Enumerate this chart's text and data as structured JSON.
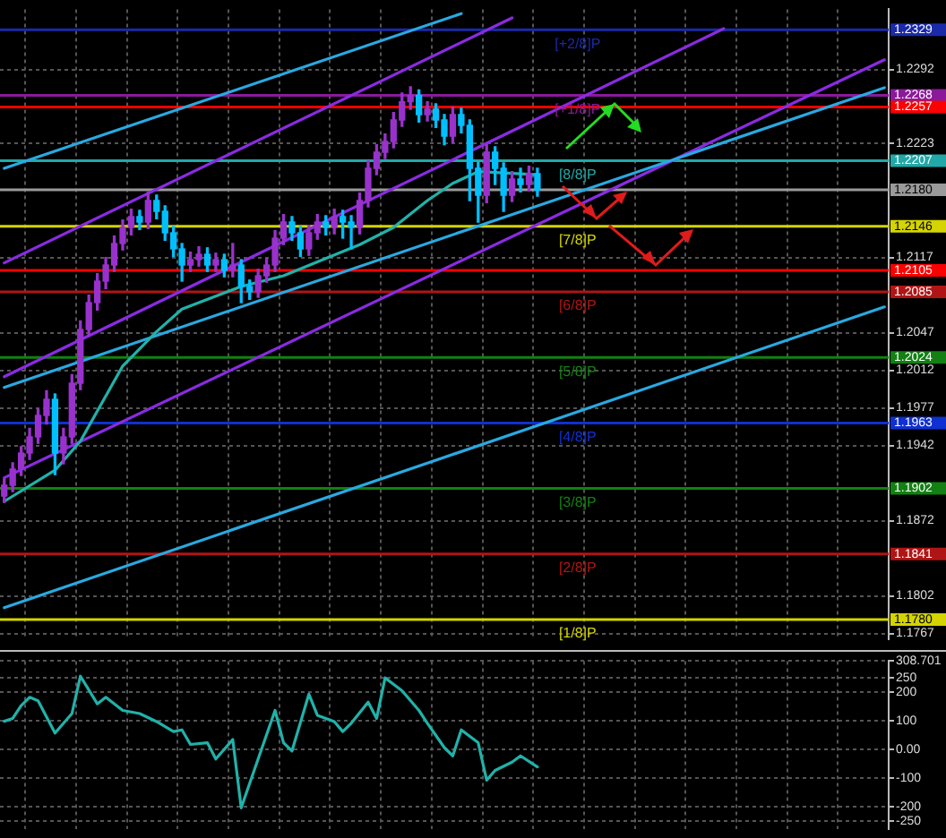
{
  "chart_data": [
    {
      "type": "candlestick",
      "categories": [
        null,
        null,
        null,
        null,
        null,
        null,
        null,
        null,
        null,
        null,
        null,
        null,
        null,
        null,
        null,
        null,
        null,
        null,
        null,
        null,
        null,
        null,
        null,
        null,
        null,
        null,
        null,
        null,
        null,
        null,
        null,
        null,
        null,
        null,
        null,
        null,
        null,
        null,
        null,
        null,
        null,
        null,
        null,
        null,
        null,
        null,
        null,
        null,
        null,
        null,
        null,
        null,
        null,
        null,
        null,
        null,
        null,
        null,
        null,
        null,
        null,
        null,
        null,
        null,
        null,
        null,
        null,
        null,
        null,
        null,
        null,
        null,
        null,
        null,
        null,
        null,
        null,
        null,
        null,
        null,
        null,
        null,
        null,
        null,
        null,
        null,
        null,
        null,
        null,
        null,
        null,
        null,
        null,
        null,
        null,
        null,
        null,
        null,
        null,
        null,
        null,
        null,
        null,
        null,
        null
      ],
      "ohlc": [
        [
          1.1895,
          1.1911,
          1.1889,
          1.1905
        ],
        [
          1.1905,
          1.1926,
          1.1899,
          1.192
        ],
        [
          1.192,
          1.1941,
          1.1914,
          1.1935
        ],
        [
          1.1935,
          1.1958,
          1.1929,
          1.195
        ],
        [
          1.195,
          1.1976,
          1.1944,
          1.197
        ],
        [
          1.197,
          1.1993,
          1.1962,
          1.1985
        ],
        [
          1.1985,
          1.199,
          1.1915,
          1.1935
        ],
        [
          1.1935,
          1.1958,
          1.1925,
          1.195
        ],
        [
          1.195,
          1.2008,
          1.1944,
          1.2
        ],
        [
          1.2,
          1.2058,
          1.1994,
          1.205
        ],
        [
          1.205,
          1.2082,
          1.2044,
          1.2075
        ],
        [
          1.2075,
          1.2102,
          1.2068,
          1.2095
        ],
        [
          1.2095,
          1.2117,
          1.2088,
          1.211
        ],
        [
          1.211,
          1.2137,
          1.2104,
          1.213
        ],
        [
          1.213,
          1.2152,
          1.2124,
          1.2145
        ],
        [
          1.2145,
          1.2162,
          1.2138,
          1.2155
        ],
        [
          1.2155,
          1.2161,
          1.2143,
          1.215
        ],
        [
          1.215,
          1.2178,
          1.2144,
          1.217
        ],
        [
          1.217,
          1.2175,
          1.2153,
          1.216
        ],
        [
          1.216,
          1.2165,
          1.2133,
          1.214
        ],
        [
          1.214,
          1.2146,
          1.2118,
          1.2125
        ],
        [
          1.2125,
          1.213,
          1.2095,
          1.211
        ],
        [
          1.211,
          1.2122,
          1.2104,
          1.2115
        ],
        [
          1.2115,
          1.2127,
          1.2109,
          1.212
        ],
        [
          1.212,
          1.2126,
          1.2104,
          1.211
        ],
        [
          1.211,
          1.2121,
          1.2104,
          1.2115
        ],
        [
          1.2115,
          1.212,
          1.2099,
          1.2105
        ],
        [
          1.2105,
          1.213,
          1.2099,
          1.211
        ],
        [
          1.211,
          1.2115,
          1.2075,
          1.209
        ],
        [
          1.209,
          1.2096,
          1.2078,
          1.2085
        ],
        [
          1.2085,
          1.2106,
          1.208,
          1.21
        ],
        [
          1.21,
          1.2116,
          1.2094,
          1.211
        ],
        [
          1.211,
          1.2142,
          1.2104,
          1.2135
        ],
        [
          1.2135,
          1.2157,
          1.2129,
          1.215
        ],
        [
          1.215,
          1.2155,
          1.2133,
          1.214
        ],
        [
          1.214,
          1.2146,
          1.2118,
          1.2125
        ],
        [
          1.2125,
          1.2147,
          1.2119,
          1.214
        ],
        [
          1.214,
          1.2157,
          1.2134,
          1.215
        ],
        [
          1.215,
          1.2156,
          1.2138,
          1.2145
        ],
        [
          1.2145,
          1.2162,
          1.2139,
          1.2155
        ],
        [
          1.2155,
          1.2161,
          1.2135,
          1.215
        ],
        [
          1.215,
          1.2156,
          1.2125,
          1.2145
        ],
        [
          1.2145,
          1.2177,
          1.2139,
          1.217
        ],
        [
          1.217,
          1.2207,
          1.2164,
          1.22
        ],
        [
          1.22,
          1.2222,
          1.2194,
          1.2215
        ],
        [
          1.2215,
          1.2232,
          1.2209,
          1.2225
        ],
        [
          1.2225,
          1.2252,
          1.2219,
          1.2245
        ],
        [
          1.2245,
          1.227,
          1.2239,
          1.2262
        ],
        [
          1.2262,
          1.2276,
          1.2255,
          1.2268
        ],
        [
          1.2268,
          1.2273,
          1.2243,
          1.225
        ],
        [
          1.225,
          1.2262,
          1.2244,
          1.2255
        ],
        [
          1.2255,
          1.226,
          1.2238,
          1.2245
        ],
        [
          1.2245,
          1.225,
          1.2222,
          1.223
        ],
        [
          1.223,
          1.2257,
          1.2224,
          1.225
        ],
        [
          1.225,
          1.2256,
          1.2233,
          1.224
        ],
        [
          1.224,
          1.2245,
          1.217,
          1.22
        ],
        [
          1.22,
          1.2206,
          1.215,
          1.2175
        ],
        [
          1.2175,
          1.2222,
          1.2168,
          1.2215
        ],
        [
          1.2215,
          1.222,
          1.2185,
          1.22
        ],
        [
          1.22,
          1.2205,
          1.216,
          1.2175
        ],
        [
          1.2175,
          1.2197,
          1.2169,
          1.219
        ],
        [
          1.219,
          1.22,
          1.2178,
          1.2185
        ],
        [
          1.2185,
          1.2202,
          1.2179,
          1.2195
        ],
        [
          1.2195,
          1.22,
          1.2174,
          1.218
        ],
        null,
        null,
        null,
        null,
        null,
        null,
        null,
        null,
        null,
        null,
        null,
        null,
        null,
        null,
        null,
        null,
        null,
        null,
        null,
        null,
        null,
        null,
        null,
        null,
        null,
        null,
        null,
        null,
        null,
        null,
        null,
        null,
        null,
        null,
        null,
        null,
        null,
        null,
        null,
        null,
        null
      ],
      "colors": [
        "#9932cc",
        "#9932cc",
        "#9932cc",
        "#9932cc",
        "#9932cc",
        "#9932cc",
        "#00bfff",
        "#9932cc",
        "#9932cc",
        "#9932cc",
        "#9932cc",
        "#9932cc",
        "#9932cc",
        "#9932cc",
        "#9932cc",
        "#9932cc",
        "#00bfff",
        "#9932cc",
        "#00bfff",
        "#00bfff",
        "#00bfff",
        "#00bfff",
        "#9932cc",
        "#9932cc",
        "#00bfff",
        "#9932cc",
        "#00bfff",
        "#9932cc",
        "#00bfff",
        "#00bfff",
        "#9932cc",
        "#9932cc",
        "#9932cc",
        "#9932cc",
        "#00bfff",
        "#00bfff",
        "#9932cc",
        "#9932cc",
        "#00bfff",
        "#9932cc",
        "#00bfff",
        "#00bfff",
        "#9932cc",
        "#9932cc",
        "#9932cc",
        "#9932cc",
        "#9932cc",
        "#9932cc",
        "#9932cc",
        "#00bfff",
        "#9932cc",
        "#00bfff",
        "#00bfff",
        "#9932cc",
        "#00bfff",
        "#00bfff",
        "#00bfff",
        "#9932cc",
        "#00bfff",
        "#00bfff",
        "#9932cc",
        "#00bfff",
        "#9932cc",
        "#00bfff",
        null,
        null,
        null,
        null,
        null,
        null,
        null,
        null,
        null,
        null,
        null,
        null,
        null,
        null,
        null,
        null,
        null,
        null,
        null,
        null,
        null,
        null,
        null,
        null,
        null,
        null,
        null,
        null,
        null,
        null,
        null,
        null,
        null,
        null,
        null,
        null,
        null,
        null,
        null,
        null,
        null
      ],
      "series": [
        {
          "type": "line",
          "color": "#20b2aa",
          "values": [
            1.189,
            null,
            null,
            null,
            null,
            null,
            1.1919,
            null,
            null,
            1.1946,
            null,
            null,
            null,
            null,
            1.2016,
            null,
            null,
            null,
            1.2048,
            null,
            null,
            1.2069,
            null,
            null,
            null,
            null,
            null,
            null,
            1.209,
            null,
            null,
            null,
            null,
            1.21,
            null,
            null,
            null,
            1.2113,
            null,
            null,
            null,
            null,
            1.2129,
            null,
            null,
            null,
            1.2145,
            null,
            null,
            null,
            1.217,
            null,
            null,
            1.2186,
            null,
            null,
            1.2197,
            null,
            null,
            null,
            null,
            null,
            null,
            1.2194,
            null,
            null,
            null,
            null,
            null,
            null,
            null,
            null,
            null,
            null,
            null,
            null,
            null,
            null,
            null,
            null,
            null,
            null,
            null,
            null,
            null,
            null,
            null,
            null,
            null,
            null,
            null,
            null,
            null,
            null,
            null,
            null,
            null,
            null,
            null,
            null,
            null,
            null,
            null,
            null,
            null
          ]
        },
        {
          "type": "line",
          "color": "#29a9e1",
          "values": [
            1.22,
            null,
            null,
            null,
            null,
            null,
            null,
            null,
            null,
            null,
            null,
            null,
            null,
            null,
            null,
            null,
            null,
            null,
            null,
            null,
            null,
            null,
            null,
            null,
            null,
            null,
            null,
            null,
            null,
            null,
            null,
            null,
            null,
            null,
            null,
            null,
            null,
            null,
            null,
            null,
            null,
            null,
            null,
            null,
            null,
            null,
            null,
            null,
            null,
            null,
            null,
            null,
            null,
            null,
            1.2344,
            null,
            null,
            null,
            null,
            null,
            null,
            null,
            null,
            null,
            null,
            null,
            null,
            null,
            null,
            null,
            null,
            null,
            null,
            null,
            null,
            null,
            null,
            null,
            null,
            null,
            null,
            null,
            null,
            null,
            null,
            null,
            null,
            null,
            null,
            null,
            null,
            null,
            null,
            null,
            null,
            null,
            null,
            null,
            null,
            null,
            null,
            null,
            null,
            null,
            null
          ]
        },
        {
          "type": "line",
          "color": "#29a9e1",
          "values": [
            1.1996,
            null,
            null,
            null,
            null,
            null,
            null,
            null,
            null,
            null,
            null,
            null,
            null,
            null,
            null,
            null,
            null,
            null,
            null,
            null,
            null,
            null,
            null,
            null,
            null,
            null,
            null,
            null,
            null,
            null,
            null,
            null,
            null,
            null,
            null,
            null,
            null,
            null,
            null,
            null,
            null,
            null,
            null,
            null,
            null,
            null,
            null,
            null,
            null,
            null,
            null,
            null,
            null,
            null,
            null,
            null,
            null,
            null,
            null,
            null,
            null,
            null,
            null,
            null,
            null,
            null,
            null,
            null,
            null,
            null,
            null,
            null,
            null,
            null,
            null,
            null,
            null,
            null,
            null,
            null,
            null,
            null,
            null,
            null,
            null,
            null,
            null,
            null,
            null,
            null,
            null,
            null,
            null,
            null,
            null,
            null,
            null,
            null,
            null,
            null,
            null,
            null,
            null,
            null,
            1.2275
          ]
        },
        {
          "type": "line",
          "color": "#29a9e1",
          "values": [
            1.1791,
            null,
            null,
            null,
            null,
            null,
            null,
            null,
            null,
            null,
            null,
            null,
            null,
            null,
            null,
            null,
            null,
            null,
            null,
            null,
            null,
            null,
            null,
            null,
            null,
            null,
            null,
            null,
            null,
            null,
            null,
            null,
            null,
            null,
            null,
            null,
            null,
            null,
            null,
            null,
            null,
            null,
            null,
            null,
            null,
            null,
            null,
            null,
            null,
            null,
            null,
            null,
            null,
            null,
            null,
            null,
            null,
            null,
            null,
            null,
            null,
            null,
            null,
            null,
            null,
            null,
            null,
            null,
            null,
            null,
            null,
            null,
            null,
            null,
            null,
            null,
            null,
            null,
            null,
            null,
            null,
            null,
            null,
            null,
            null,
            null,
            null,
            null,
            null,
            null,
            null,
            null,
            null,
            null,
            null,
            null,
            null,
            null,
            null,
            null,
            null,
            null,
            null,
            null,
            1.2071
          ]
        },
        {
          "type": "line",
          "color": "#8a2be2",
          "values": [
            1.2112,
            null,
            null,
            null,
            null,
            null,
            null,
            null,
            null,
            null,
            null,
            null,
            null,
            null,
            null,
            null,
            null,
            null,
            null,
            null,
            null,
            null,
            null,
            null,
            null,
            null,
            null,
            null,
            null,
            null,
            null,
            null,
            null,
            null,
            null,
            null,
            null,
            null,
            null,
            null,
            null,
            null,
            null,
            null,
            null,
            null,
            null,
            null,
            null,
            null,
            null,
            null,
            null,
            null,
            null,
            null,
            null,
            null,
            null,
            null,
            1.234,
            null,
            null,
            null,
            null,
            null,
            null,
            null,
            null,
            null,
            null,
            null,
            null,
            null,
            null,
            null,
            null,
            null,
            null,
            null,
            null,
            null,
            null,
            null,
            null,
            null,
            null,
            null,
            null,
            null,
            null,
            null,
            null,
            null,
            null,
            null,
            null,
            null,
            null,
            null,
            null,
            null,
            null,
            null,
            null
          ]
        },
        {
          "type": "line",
          "color": "#8a2be2",
          "values": [
            1.2006,
            null,
            null,
            null,
            null,
            null,
            null,
            null,
            null,
            null,
            null,
            null,
            null,
            null,
            null,
            null,
            null,
            null,
            null,
            null,
            null,
            null,
            null,
            null,
            null,
            null,
            null,
            null,
            null,
            null,
            null,
            null,
            null,
            null,
            null,
            null,
            null,
            null,
            null,
            null,
            null,
            null,
            null,
            null,
            null,
            null,
            null,
            null,
            null,
            null,
            null,
            null,
            null,
            null,
            null,
            null,
            null,
            null,
            null,
            null,
            null,
            null,
            null,
            null,
            null,
            null,
            null,
            null,
            null,
            null,
            null,
            null,
            null,
            null,
            null,
            null,
            null,
            null,
            null,
            null,
            null,
            null,
            null,
            null,
            null,
            1.233,
            null,
            null,
            null,
            null,
            null,
            null,
            null,
            null,
            null,
            null,
            null,
            null,
            null,
            null,
            null,
            null,
            null,
            null,
            null
          ]
        },
        {
          "type": "line",
          "color": "#8a2be2",
          "values": [
            1.1912,
            null,
            null,
            null,
            null,
            null,
            null,
            null,
            null,
            null,
            null,
            null,
            null,
            null,
            null,
            null,
            null,
            null,
            null,
            null,
            null,
            null,
            null,
            null,
            null,
            null,
            null,
            null,
            null,
            null,
            null,
            null,
            null,
            null,
            null,
            null,
            null,
            null,
            null,
            null,
            null,
            null,
            null,
            null,
            null,
            null,
            null,
            null,
            null,
            null,
            null,
            null,
            null,
            null,
            null,
            null,
            null,
            null,
            null,
            null,
            null,
            null,
            null,
            null,
            null,
            null,
            null,
            null,
            null,
            null,
            null,
            null,
            null,
            null,
            null,
            null,
            null,
            null,
            null,
            null,
            null,
            null,
            null,
            null,
            null,
            null,
            null,
            null,
            null,
            null,
            null,
            null,
            null,
            null,
            null,
            null,
            null,
            null,
            null,
            null,
            null,
            null,
            null,
            null,
            1.2301
          ]
        }
      ],
      "ylim": [
        1.1762,
        1.2348
      ],
      "yticks": [
        1.2292,
        1.2223,
        1.2117,
        1.2047,
        1.2012,
        1.1977,
        1.1942,
        1.1872,
        1.1802,
        1.1767
      ],
      "ref_lines": [
        {
          "axis": "y",
          "value": 1.2329,
          "label": "1.2329",
          "color": "#1a2aa8"
        },
        {
          "axis": "y",
          "value": 1.2268,
          "label": "1.2268",
          "color": "#8b1a9b"
        },
        {
          "axis": "y",
          "value": 1.2257,
          "label": "1.2257",
          "color": "#ff0000"
        },
        {
          "axis": "y",
          "value": 1.2207,
          "label": "1.2207",
          "color": "#22a8a8"
        },
        {
          "axis": "y",
          "value": 1.218,
          "label": "1.2180",
          "color": "#9a9a9a"
        },
        {
          "axis": "y",
          "value": 1.2146,
          "label": "1.2146",
          "color": "#d4d400"
        },
        {
          "axis": "y",
          "value": 1.2105,
          "label": "1.2105",
          "color": "#ff0000"
        },
        {
          "axis": "y",
          "value": 1.2085,
          "label": "1.2085",
          "color": "#b01515"
        },
        {
          "axis": "y",
          "value": 1.2024,
          "label": "1.2024",
          "color": "#128012"
        },
        {
          "axis": "y",
          "value": 1.1963,
          "label": "1.1963",
          "color": "#1030d0"
        },
        {
          "axis": "y",
          "value": 1.1902,
          "label": "1.1902",
          "color": "#128012"
        },
        {
          "axis": "y",
          "value": 1.1841,
          "label": "1.1841",
          "color": "#b01515"
        },
        {
          "axis": "y",
          "value": 1.178,
          "label": "1.1780",
          "color": "#d4d400"
        }
      ],
      "annotations": [
        {
          "text": "[+2/8]P",
          "y": 1.2329
        },
        {
          "text": "[+1/8]P",
          "y": 1.2268
        },
        {
          "text": "[8/8]P",
          "y": 1.2207
        },
        {
          "text": "[7/8]P",
          "y": 1.2146
        },
        {
          "text": "[6/8]P",
          "y": 1.2085
        },
        {
          "text": "[5/8]P",
          "y": 1.2024
        },
        {
          "text": "[4/8]P",
          "y": 1.1963
        },
        {
          "text": "[3/8]P",
          "y": 1.1902
        },
        {
          "text": "[2/8]P",
          "y": 1.1841
        },
        {
          "text": "[1/8]P",
          "y": 1.178
        }
      ],
      "grid": true,
      "tick_labels": "y"
    },
    {
      "type": "line",
      "categories": [
        null,
        null,
        null,
        null,
        null,
        null,
        null,
        null,
        null,
        null,
        null,
        null,
        null,
        null,
        null,
        null,
        null,
        null,
        null,
        null,
        null,
        null,
        null,
        null,
        null,
        null,
        null,
        null,
        null,
        null,
        null,
        null,
        null,
        null,
        null,
        null,
        null,
        null,
        null,
        null,
        null,
        null,
        null,
        null,
        null,
        null,
        null,
        null,
        null,
        null,
        null,
        null,
        null,
        null,
        null,
        null,
        null,
        null,
        null,
        null,
        null,
        null,
        null,
        null,
        null,
        null,
        null,
        null,
        null,
        null,
        null,
        null,
        null,
        null,
        null,
        null,
        null,
        null,
        null,
        null,
        null,
        null,
        null,
        null,
        null,
        null,
        null,
        null,
        null,
        null,
        null,
        null,
        null,
        null,
        null,
        null,
        null,
        null,
        null,
        null,
        null,
        null,
        null,
        null,
        null
      ],
      "color": "#20b2aa",
      "values": [
        98,
        108,
        153,
        182,
        170,
        null,
        57,
        null,
        125,
        256,
        null,
        159,
        182,
        null,
        136,
        null,
        125,
        null,
        97,
        null,
        62,
        68,
        17,
        null,
        23,
        -34,
        null,
        34,
        -205,
        null,
        -34,
        null,
        136,
        23,
        -6,
        null,
        193,
        119,
        null,
        97,
        62,
        91,
        null,
        165,
        108,
        250,
        null,
        205,
        null,
        136,
        91,
        null,
        6,
        -23,
        68,
        null,
        23,
        -108,
        -74,
        null,
        -45,
        -23,
        null,
        -62,
        null,
        null,
        null,
        null,
        null,
        null,
        null,
        null,
        null,
        null,
        null,
        null,
        null,
        null,
        null,
        null,
        null,
        null,
        null,
        null,
        null,
        null,
        null,
        null,
        null,
        null,
        null,
        null,
        null,
        null,
        null,
        null,
        null,
        null,
        null,
        null,
        null,
        null,
        null,
        null,
        null
      ],
      "ylim": [
        -278,
        308.701
      ],
      "yticks": [
        {
          "value": 308.701,
          "label": "308.701"
        },
        250,
        200,
        100,
        {
          "value": 0,
          "label": "0.00"
        },
        -100,
        -200,
        -250
      ],
      "grid": true,
      "tick_labels": "y"
    }
  ]
}
